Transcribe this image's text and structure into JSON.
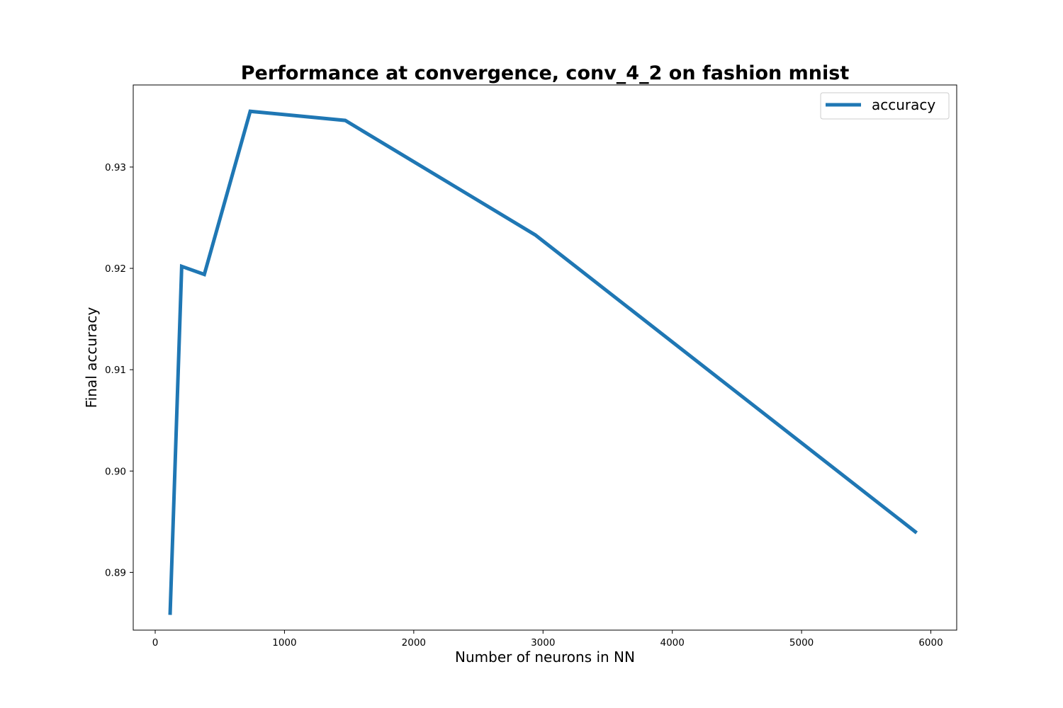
{
  "chart_data": {
    "type": "line",
    "title": "Performance at convergence, conv_4_2 on fashion mnist",
    "xlabel": "Number of neurons in NN",
    "ylabel": "Final accuracy",
    "xlim": [
      -170,
      6200
    ],
    "ylim": [
      0.8843,
      0.9381
    ],
    "xticks": [
      0,
      1000,
      2000,
      3000,
      4000,
      5000,
      6000
    ],
    "xtick_labels": [
      "0",
      "1000",
      "2000",
      "3000",
      "4000",
      "5000",
      "6000"
    ],
    "yticks": [
      0.89,
      0.9,
      0.91,
      0.92,
      0.93
    ],
    "ytick_labels": [
      "0.89",
      "0.90",
      "0.91",
      "0.92",
      "0.93"
    ],
    "grid": false,
    "legend_position": "top-right",
    "series": [
      {
        "name": "accuracy",
        "color": "#1f77b4",
        "x": [
          115,
          205,
          380,
          735,
          1470,
          2940,
          5890
        ],
        "y": [
          0.8858,
          0.9202,
          0.9194,
          0.9355,
          0.9346,
          0.9233,
          0.8939
        ]
      }
    ]
  }
}
